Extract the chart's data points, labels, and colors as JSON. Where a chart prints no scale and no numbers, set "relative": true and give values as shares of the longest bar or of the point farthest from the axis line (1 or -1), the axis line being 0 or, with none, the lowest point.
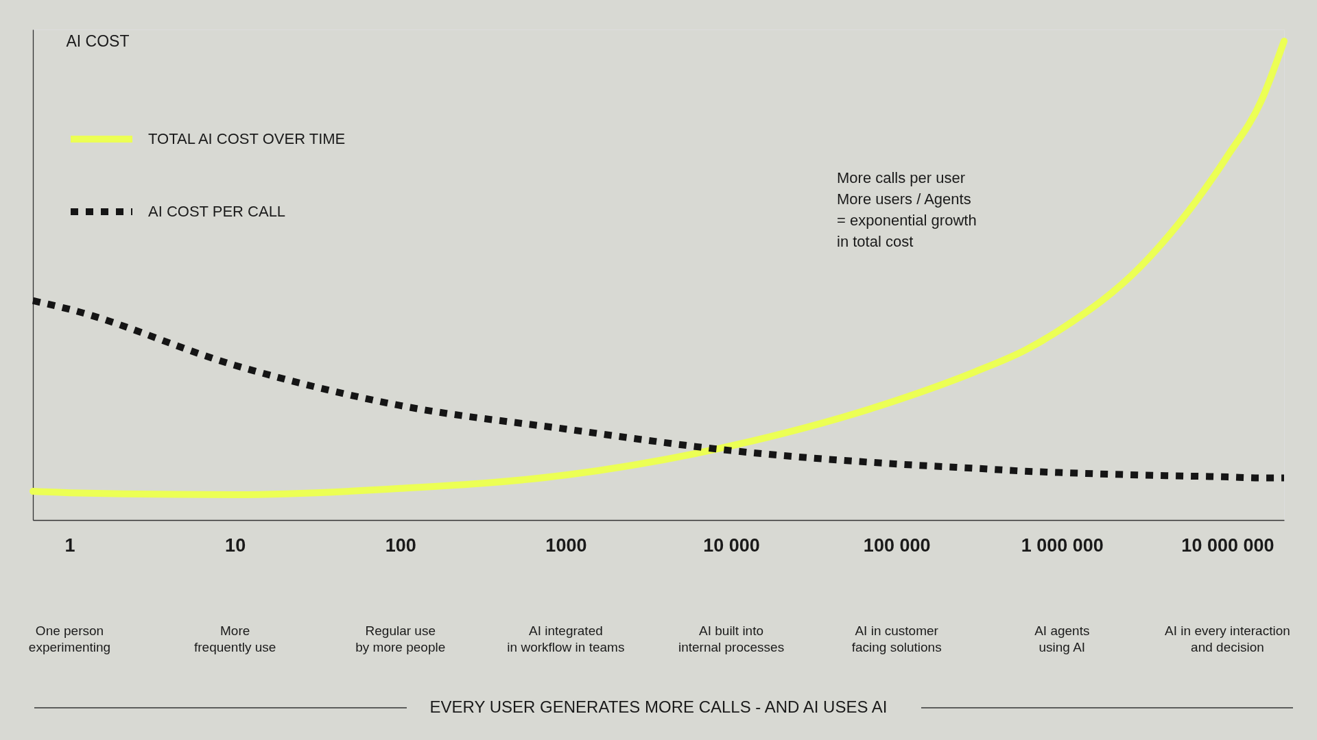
{
  "chart_data": {
    "type": "line",
    "relative": true,
    "log": "x",
    "grid": false,
    "legend": "top left",
    "ylabel": "AI COST",
    "xlim": [
      0.6,
      22000000
    ],
    "xticks": [
      1,
      10,
      100,
      1000,
      {
        "value": 10000,
        "label": "10 000"
      },
      {
        "value": 100000,
        "label": "100 000"
      },
      {
        "value": 1000000,
        "label": "1 000 000"
      },
      {
        "value": 10000000,
        "label": "10 000 000"
      }
    ],
    "x": [
      0.6,
      1,
      10,
      100,
      1000,
      10000,
      100000,
      300000,
      600000,
      1000000,
      3000000,
      10000000,
      16000000,
      22000000
    ],
    "series": [
      {
        "name": "TOTAL AI COST OVER TIME",
        "color": "#ecff54",
        "line_style": "solid",
        "values": [
          0.06,
          0.057,
          0.053,
          0.066,
          0.094,
          0.155,
          0.25,
          0.31,
          0.355,
          0.4,
          0.53,
          0.76,
          0.875,
          1
        ]
      },
      {
        "name": "AI COST PER CALL",
        "color": "#151515",
        "line_style": "dashed",
        "values": [
          0.458,
          0.44,
          0.323,
          0.239,
          0.19,
          0.145,
          0.117,
          0.108,
          0.102,
          0.099,
          0.094,
          0.09,
          0.088,
          0.088
        ]
      }
    ],
    "annotations": [
      "More calls per user\nMore users / Agents\n= exponential growth\nin total cost",
      "One person\nexperimenting",
      "More\nfrequently use",
      "Regular use\nby more people",
      "AI integrated\nin workflow in teams",
      "AI built into\ninternal processes",
      "AI in customer\nfacing solutions",
      "AI agents\nusing AI",
      "AI in every interaction\nand decision",
      "EVERY USER GENERATES MORE CALLS - AND AI USES AI"
    ]
  }
}
